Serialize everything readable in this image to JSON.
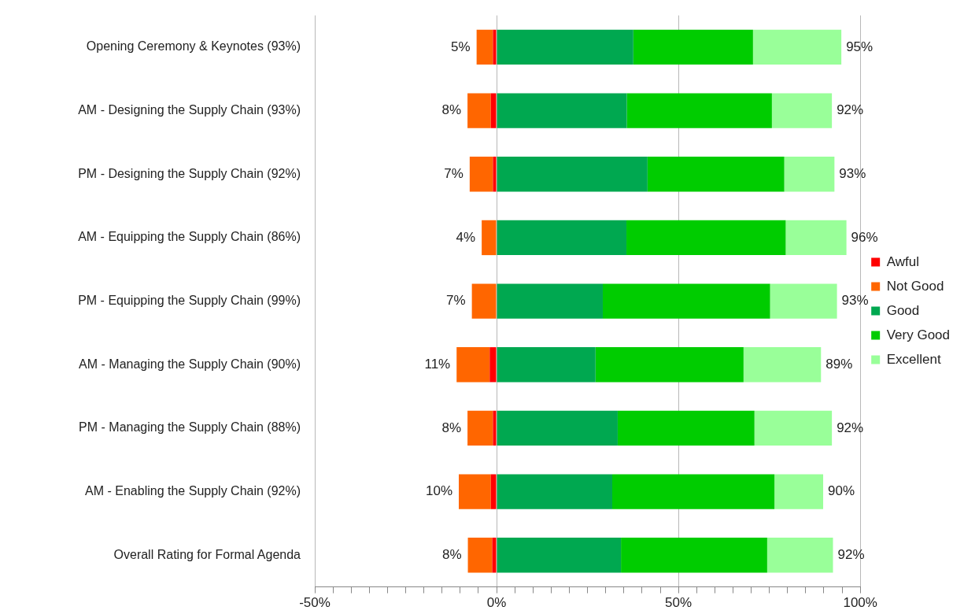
{
  "chart_data": {
    "type": "bar",
    "orientation": "horizontal",
    "stacked": true,
    "categories": [
      "Opening Ceremony & Keynotes (93%)",
      "AM - Designing the Supply Chain (93%)",
      "PM - Designing the Supply Chain (92%)",
      "AM - Equipping the Supply Chain (86%)",
      "PM - Equipping the Supply Chain (99%)",
      "AM - Managing the Supply Chain (90%)",
      "PM - Managing the Supply Chain (88%)",
      "AM - Enabling the Supply Chain (92%)",
      "Overall Rating for Formal Agenda"
    ],
    "series": [
      {
        "name": "Awful",
        "color": "#ff0000",
        "values": [
          -1,
          -1.6,
          -1,
          0,
          0,
          -1.9,
          -1,
          -1.6,
          -1.2
        ]
      },
      {
        "name": "Not Good",
        "color": "#ff6600",
        "values": [
          -4.5,
          -6.4,
          -6.4,
          -4.1,
          -6.8,
          -9.1,
          -7,
          -8.8,
          -6.7
        ]
      },
      {
        "name": "Good",
        "color": "#00a850",
        "values": [
          37.6,
          35.8,
          41.5,
          35.7,
          29.2,
          27.2,
          33.3,
          31.8,
          34.2
        ]
      },
      {
        "name": "Very Good",
        "color": "#00cc00",
        "values": [
          32.9,
          39.9,
          37.6,
          43.8,
          46,
          40.7,
          37.6,
          44.6,
          40.2
        ]
      },
      {
        "name": "Excellent",
        "color": "#99ff99",
        "values": [
          24.3,
          16.5,
          13.8,
          16.7,
          18.4,
          21.3,
          21.3,
          13.4,
          18.1
        ]
      }
    ],
    "xlim": [
      -50,
      100
    ],
    "xticks": [
      {
        "value": -50,
        "label": "-50%"
      },
      {
        "value": -45,
        "label": null
      },
      {
        "value": -40,
        "label": null
      },
      {
        "value": -35,
        "label": null
      },
      {
        "value": -30,
        "label": null
      },
      {
        "value": -25,
        "label": null
      },
      {
        "value": -20,
        "label": null
      },
      {
        "value": -15,
        "label": null
      },
      {
        "value": -10,
        "label": null
      },
      {
        "value": -5,
        "label": null
      },
      {
        "value": 0,
        "label": "0%"
      },
      {
        "value": 5,
        "label": null
      },
      {
        "value": 10,
        "label": null
      },
      {
        "value": 15,
        "label": null
      },
      {
        "value": 20,
        "label": null
      },
      {
        "value": 25,
        "label": null
      },
      {
        "value": 30,
        "label": null
      },
      {
        "value": 35,
        "label": null
      },
      {
        "value": 40,
        "label": null
      },
      {
        "value": 45,
        "label": null
      },
      {
        "value": 50,
        "label": "50%"
      },
      {
        "value": 55,
        "label": null
      },
      {
        "value": 60,
        "label": null
      },
      {
        "value": 65,
        "label": null
      },
      {
        "value": 70,
        "label": null
      },
      {
        "value": 75,
        "label": null
      },
      {
        "value": 80,
        "label": null
      },
      {
        "value": 85,
        "label": null
      },
      {
        "value": 90,
        "label": null
      },
      {
        "value": 95,
        "label": null
      },
      {
        "value": 100,
        "label": "100%"
      }
    ],
    "grid": "x",
    "legend": "right",
    "annotations": [
      {
        "text": "5%",
        "x": -5.5,
        "y": "Opening Ceremony & Keynotes (93%)"
      },
      {
        "text": "95%",
        "x": 94.8,
        "y": "Opening Ceremony & Keynotes (93%)"
      },
      {
        "text": "8%",
        "x": -8,
        "y": "AM - Designing the Supply Chain (93%)"
      },
      {
        "text": "92%",
        "x": 92.2,
        "y": "AM - Designing the Supply Chain (93%)"
      },
      {
        "text": "7%",
        "x": -7.4,
        "y": "PM - Designing the Supply Chain (92%)"
      },
      {
        "text": "93%",
        "x": 92.9,
        "y": "PM - Designing the Supply Chain (92%)"
      },
      {
        "text": "4%",
        "x": -4.1,
        "y": "AM - Equipping the Supply Chain (86%)"
      },
      {
        "text": "96%",
        "x": 96.2,
        "y": "AM - Equipping the Supply Chain (86%)"
      },
      {
        "text": "7%",
        "x": -6.8,
        "y": "PM - Equipping the Supply Chain (99%)"
      },
      {
        "text": "93%",
        "x": 93.6,
        "y": "PM - Equipping the Supply Chain (99%)"
      },
      {
        "text": "11%",
        "x": -11,
        "y": "AM - Managing the Supply Chain (90%)"
      },
      {
        "text": "89%",
        "x": 89.2,
        "y": "AM - Managing the Supply Chain (90%)"
      },
      {
        "text": "8%",
        "x": -8,
        "y": "PM - Managing the Supply Chain (88%)"
      },
      {
        "text": "92%",
        "x": 92.2,
        "y": "PM - Managing the Supply Chain (88%)"
      },
      {
        "text": "10%",
        "x": -10.4,
        "y": "AM - Enabling the Supply Chain (92%)"
      },
      {
        "text": "90%",
        "x": 89.8,
        "y": "AM - Enabling the Supply Chain (92%)"
      },
      {
        "text": "8%",
        "x": -7.9,
        "y": "Overall Rating for Formal Agenda"
      },
      {
        "text": "92%",
        "x": 92.5,
        "y": "Overall Rating for Formal Agenda"
      }
    ]
  }
}
